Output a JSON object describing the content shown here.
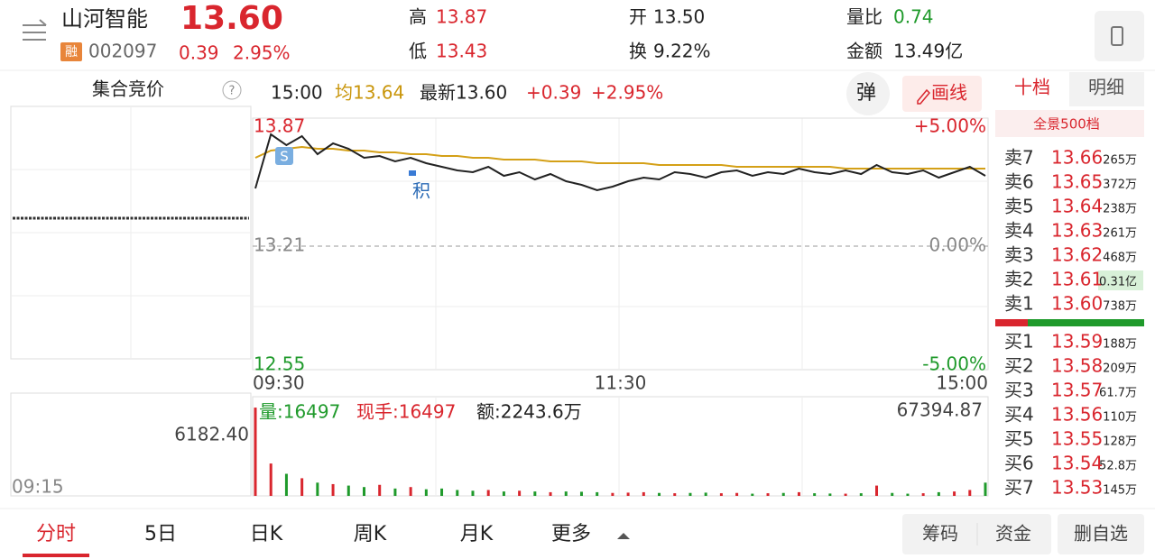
{
  "header": {
    "name": "山河智能",
    "price": "13.60",
    "tag": "融",
    "code": "002097",
    "change": "0.39",
    "change_pct": "2.95%",
    "high_label": "高",
    "high": "13.87",
    "low_label": "低",
    "low": "13.43",
    "open_label": "开",
    "open": "13.50",
    "turnover_label": "换",
    "turnover": "9.22%",
    "vol_ratio_label": "量比",
    "vol_ratio": "0.74",
    "amount_label": "金额",
    "amount": "13.49亿"
  },
  "auction": {
    "title": "集合竞价",
    "help": "?",
    "value_label": "6182.40",
    "time": "09:15"
  },
  "info_bar": {
    "time": "15:00",
    "avg": "均13.64",
    "latest": "最新13.60",
    "change": "+0.39",
    "change_pct": "+2.95%",
    "popup_button": "弹",
    "draw_button": "画线"
  },
  "chart_data": {
    "type": "line",
    "series": [
      {
        "color": "#222222",
        "values": [
          13.53,
          13.83,
          13.77,
          13.82,
          13.72,
          13.78,
          13.75,
          13.7,
          13.71,
          13.68,
          13.7,
          13.67,
          13.65,
          13.63,
          13.62,
          13.65,
          13.6,
          13.62,
          13.58,
          13.61,
          13.57,
          13.55,
          13.52,
          13.54,
          13.57,
          13.59,
          13.58,
          13.62,
          13.61,
          13.59,
          13.62,
          13.63,
          13.6,
          13.62,
          13.61,
          13.64,
          13.62,
          13.61,
          13.63,
          13.61,
          13.66,
          13.62,
          13.61,
          13.63,
          13.59,
          13.62,
          13.65,
          13.6
        ]
      },
      {
        "color": "#d4a017",
        "values": [
          13.7,
          13.74,
          13.75,
          13.76,
          13.75,
          13.75,
          13.74,
          13.74,
          13.73,
          13.73,
          13.72,
          13.72,
          13.71,
          13.71,
          13.7,
          13.7,
          13.69,
          13.69,
          13.69,
          13.68,
          13.68,
          13.68,
          13.67,
          13.67,
          13.67,
          13.67,
          13.66,
          13.66,
          13.66,
          13.66,
          13.66,
          13.65,
          13.65,
          13.65,
          13.65,
          13.65,
          13.65,
          13.65,
          13.64,
          13.64,
          13.64,
          13.64,
          13.64,
          13.64,
          13.64,
          13.64,
          13.64,
          13.64
        ]
      }
    ],
    "ylim": [
      12.55,
      13.87
    ],
    "yticks": [
      13.87,
      13.21,
      12.55
    ],
    "y2lim": [
      -5,
      5
    ],
    "y2ticks": [
      {
        "value": 5,
        "label": "+5.00%"
      },
      {
        "value": 0,
        "label": "0.00%"
      },
      {
        "value": -5,
        "label": "-5.00%"
      }
    ],
    "x_labels": [
      "09:30",
      "11:30",
      "15:00"
    ],
    "annotations": [
      "S",
      "积"
    ],
    "volume_info": [
      "量:16497",
      "现手:16497",
      "额:2243.6万"
    ],
    "volume": [
      60000,
      22000,
      15000,
      12000,
      9000,
      8000,
      7000,
      6000,
      7500,
      5000,
      6000,
      4500,
      5000,
      4000,
      3500,
      4000,
      3000,
      3500,
      3000,
      2500,
      3000,
      2800,
      2500,
      2000,
      2200,
      2500,
      2000,
      1800,
      2000,
      2200,
      1800,
      2000,
      1500,
      1800,
      2000,
      2500,
      1800,
      1600,
      1500,
      1800,
      7000,
      2000,
      1500,
      1800,
      2500,
      3000,
      4000,
      9000
    ],
    "vol_ylim": [
      0,
      67394.87
    ],
    "vol_yticks": [
      67394.87
    ]
  },
  "order_book": {
    "tabs": [
      "十档",
      "明细"
    ],
    "subtitle": "全景500档",
    "asks": [
      {
        "label": "卖7",
        "price": "13.66",
        "volume": "265万"
      },
      {
        "label": "卖6",
        "price": "13.65",
        "volume": "372万"
      },
      {
        "label": "卖5",
        "price": "13.64",
        "volume": "238万"
      },
      {
        "label": "卖4",
        "price": "13.63",
        "volume": "261万"
      },
      {
        "label": "卖3",
        "price": "13.62",
        "volume": "468万"
      },
      {
        "label": "卖2",
        "price": "13.61",
        "volume": "0.31亿"
      },
      {
        "label": "卖1",
        "price": "13.60",
        "volume": "738万"
      }
    ],
    "bids": [
      {
        "label": "买1",
        "price": "13.59",
        "volume": "188万"
      },
      {
        "label": "买2",
        "price": "13.58",
        "volume": "209万"
      },
      {
        "label": "买3",
        "price": "13.57",
        "volume": "61.7万"
      },
      {
        "label": "买4",
        "price": "13.56",
        "volume": "110万"
      },
      {
        "label": "买5",
        "price": "13.55",
        "volume": "128万"
      },
      {
        "label": "买6",
        "price": "13.54",
        "volume": "52.8万"
      },
      {
        "label": "买7",
        "price": "13.53",
        "volume": "145万"
      }
    ]
  },
  "nav": {
    "tabs": [
      "分时",
      "5日",
      "日K",
      "周K",
      "月K",
      "更多"
    ],
    "buttons": [
      "筹码",
      "资金",
      "删自选"
    ]
  }
}
